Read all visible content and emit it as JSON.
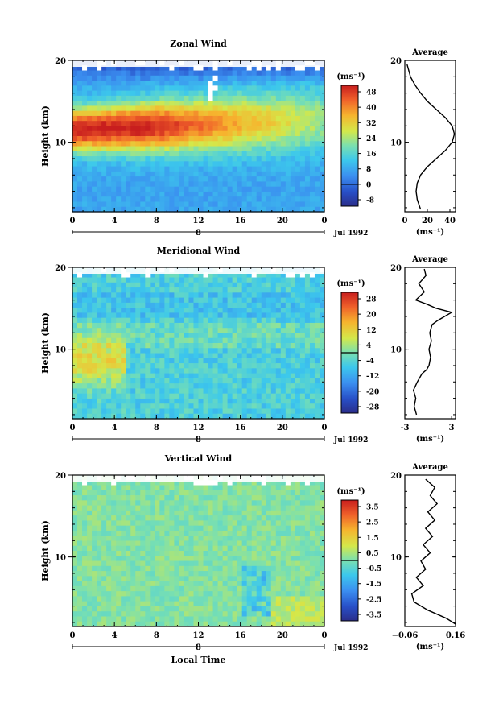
{
  "panels": [
    {
      "title": "Zonal Wind",
      "ylabel": "Height (km)",
      "ylim": [
        1.5,
        20
      ],
      "yticks": [
        "10",
        "20"
      ],
      "xticks": [
        "0",
        "4",
        "8",
        "12",
        "16",
        "20",
        "0"
      ],
      "date_tick": "8",
      "date_label": "Jul 1992",
      "colorbar": {
        "unit": "(ms⁻¹)",
        "labels": [
          "48",
          "40",
          "32",
          "24",
          "16",
          "8",
          "0",
          "-8"
        ],
        "range": [
          -8,
          52
        ]
      },
      "average": {
        "title": "Average",
        "yticks": [
          "10",
          "20"
        ],
        "xticks": [
          "0",
          "20",
          "40"
        ],
        "xlabel": "(ms⁻¹)"
      }
    },
    {
      "title": "Meridional Wind",
      "ylabel": "Height (km)",
      "ylim": [
        1.5,
        20
      ],
      "yticks": [
        "10",
        "20"
      ],
      "xticks": [
        "0",
        "4",
        "8",
        "12",
        "16",
        "20",
        "0"
      ],
      "date_tick": "8",
      "date_label": "Jul 1992",
      "colorbar": {
        "unit": "(ms⁻¹)",
        "labels": [
          "28",
          "20",
          "12",
          "4",
          "-4",
          "-12",
          "-20",
          "-28"
        ],
        "range": [
          -28,
          28
        ]
      },
      "average": {
        "title": "Average",
        "yticks": [
          "10",
          "20"
        ],
        "xticks": [
          "-3",
          "3"
        ],
        "xlabel": "(ms⁻¹)"
      }
    },
    {
      "title": "Vertical Wind",
      "ylabel": "Height (km)",
      "ylim": [
        1.5,
        20
      ],
      "yticks": [
        "10",
        "20"
      ],
      "xticks": [
        "0",
        "4",
        "8",
        "12",
        "16",
        "20",
        "0"
      ],
      "date_tick": "8",
      "date_label": "Jul 1992",
      "xlabel": "Local Time",
      "colorbar": {
        "unit": "(ms⁻¹)",
        "labels": [
          "3.5",
          "2.5",
          "1.5",
          "0.5",
          "-0.5",
          "-1.5",
          "-2.5",
          "-3.5"
        ],
        "range": [
          -4,
          4
        ]
      },
      "average": {
        "title": "Average",
        "yticks": [
          "10",
          "20"
        ],
        "xticks": [
          "−0.06",
          "0.16"
        ],
        "xlabel": "(ms⁻¹)"
      }
    }
  ],
  "chart_data": [
    {
      "type": "heatmap",
      "title": "Zonal Wind",
      "xlabel": "",
      "ylabel": "Height (km)",
      "xlim_hours": [
        0,
        24
      ],
      "ylim_km": [
        1.5,
        20
      ],
      "value_range": [
        -8,
        52
      ],
      "description_points": [
        {
          "x_hour": 6,
          "y_km": 11.5,
          "value": 50
        },
        {
          "x_hour": 14,
          "y_km": 12,
          "value": 38
        },
        {
          "x_hour": 22,
          "y_km": 12.5,
          "value": 28
        },
        {
          "x_hour": 2,
          "y_km": 4,
          "value": 10
        },
        {
          "x_hour": 18,
          "y_km": 5,
          "value": 6
        },
        {
          "x_hour": 12,
          "y_km": 18.5,
          "value": 8
        }
      ]
    },
    {
      "type": "line",
      "title": "Average",
      "xlabel": "(ms⁻¹)",
      "xlim": [
        0,
        45
      ],
      "ylim": [
        1.5,
        20
      ],
      "series": [
        {
          "x": [
            14,
            11,
            10,
            11,
            14,
            20,
            28,
            36,
            42,
            44,
            42,
            36,
            28,
            20,
            14,
            9,
            5,
            2
          ],
          "y": [
            1.8,
            3,
            4,
            5,
            6,
            7,
            8,
            9,
            10,
            11,
            12,
            13,
            14,
            15,
            16,
            17,
            18,
            19.5
          ]
        }
      ]
    },
    {
      "type": "heatmap",
      "title": "Meridional Wind",
      "ylabel": "Height (km)",
      "xlim_hours": [
        0,
        24
      ],
      "ylim_km": [
        1.5,
        20
      ],
      "value_range": [
        -28,
        28
      ],
      "description_points": [
        {
          "x_hour": 2,
          "y_km": 8.5,
          "value": 12
        },
        {
          "x_hour": 4,
          "y_km": 6,
          "value": 6
        },
        {
          "x_hour": 14,
          "y_km": 6,
          "value": -6
        },
        {
          "x_hour": 12,
          "y_km": 14,
          "value": -3
        },
        {
          "x_hour": 20,
          "y_km": 17,
          "value": -4
        }
      ]
    },
    {
      "type": "line",
      "title": "Average",
      "xlabel": "(ms⁻¹)",
      "xlim": [
        -3,
        3.5
      ],
      "ylim": [
        1.5,
        20
      ],
      "series": [
        {
          "x": [
            -1.5,
            -1.8,
            -1.6,
            -1.9,
            -1.4,
            -0.8,
            -0.2,
            0.1,
            0.3,
            0.1,
            0.4,
            0.2,
            0.5,
            1.2,
            3.0,
            1.0,
            -0.2,
            -1.6,
            -0.5,
            -1.2,
            -0.3,
            -0.5
          ],
          "y": [
            2,
            3,
            4,
            5,
            6,
            7,
            7.5,
            8,
            9,
            10,
            11,
            12,
            13,
            13.5,
            14.5,
            15,
            15.5,
            16,
            17,
            18,
            19,
            19.8
          ]
        }
      ]
    },
    {
      "type": "heatmap",
      "title": "Vertical Wind",
      "xlabel": "Local Time",
      "ylabel": "Height (km)",
      "xlim_hours": [
        0,
        24
      ],
      "ylim_km": [
        1.5,
        20
      ],
      "value_range": [
        -4,
        4
      ],
      "description_points": [
        {
          "x_hour": 8,
          "y_km": 10,
          "value": -0.2
        },
        {
          "x_hour": 17,
          "y_km": 5,
          "value": -1.5
        },
        {
          "x_hour": 18,
          "y_km": 8,
          "value": -2.0
        },
        {
          "x_hour": 21,
          "y_km": 4,
          "value": 0.4
        }
      ]
    },
    {
      "type": "line",
      "title": "Average",
      "xlabel": "(ms⁻¹)",
      "xlim": [
        -0.06,
        0.16
      ],
      "ylim": [
        1.5,
        20
      ],
      "series": [
        {
          "x": [
            0.16,
            0.12,
            0.04,
            -0.02,
            -0.03,
            0.02,
            -0.01,
            0.03,
            0.01,
            0.05,
            0.02,
            0.06,
            0.03,
            0.07,
            0.04,
            0.08,
            0.05,
            0.07,
            0.03
          ],
          "y": [
            1.8,
            2.5,
            3.5,
            4.5,
            5.5,
            6.5,
            7.5,
            8.5,
            9.5,
            10.5,
            11.5,
            12.5,
            13.5,
            14.5,
            15.5,
            16.5,
            17.5,
            18.5,
            19.5
          ]
        }
      ]
    }
  ]
}
